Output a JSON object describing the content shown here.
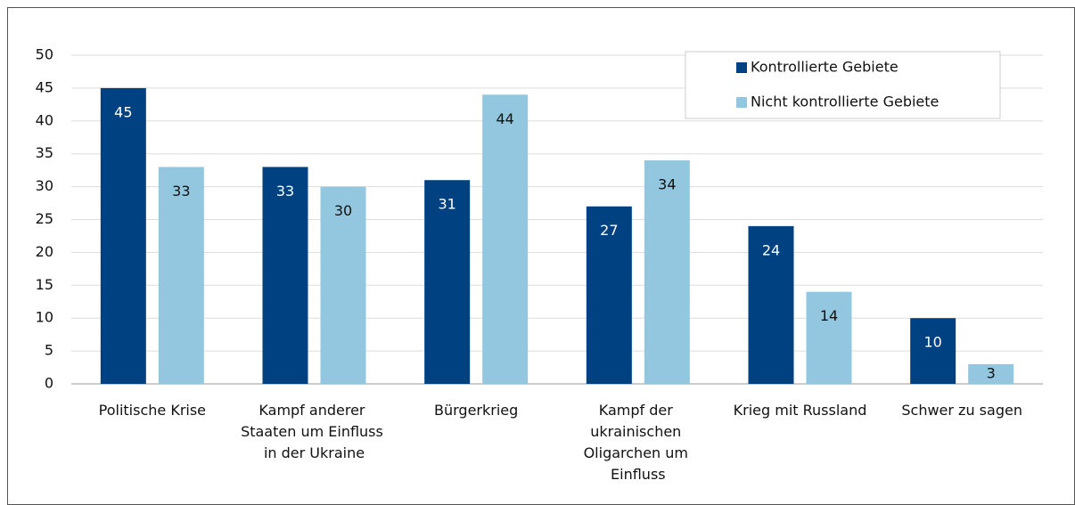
{
  "chart_data": {
    "type": "bar",
    "categories": [
      "Politische Krise",
      "Kampf anderer Staaten um Einfluss in der Ukraine",
      "Bürgerkrieg",
      "Kampf der ukrainischen Oligarchen um Einfluss",
      "Krieg mit Russland",
      "Schwer zu sagen"
    ],
    "series": [
      {
        "name": "Kontrollierte Gebiete",
        "color": "#004281",
        "values": [
          45,
          33,
          31,
          27,
          24,
          10
        ]
      },
      {
        "name": "Nicht kontrollierte Gebiete",
        "color": "#93c6df",
        "values": [
          33,
          30,
          44,
          34,
          14,
          3
        ]
      }
    ],
    "ylim": [
      0,
      50
    ],
    "yticks": [
      0,
      5,
      10,
      15,
      20,
      25,
      30,
      35,
      40,
      45,
      50
    ],
    "grid": true,
    "legend": "top-right"
  }
}
